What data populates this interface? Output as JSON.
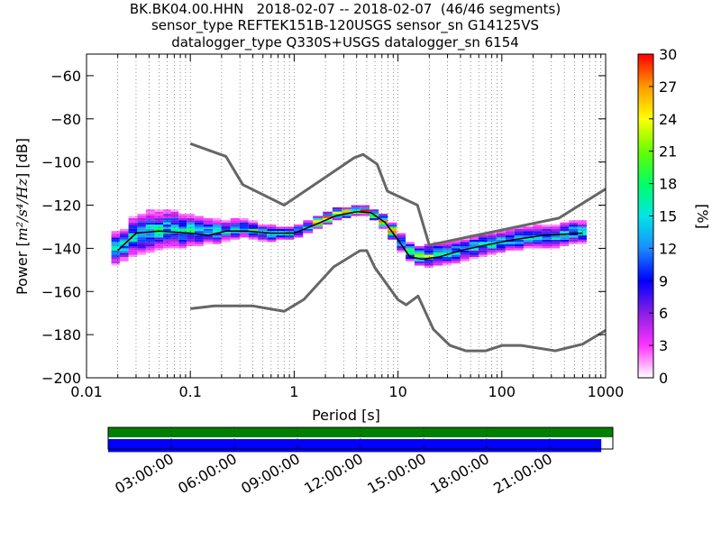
{
  "title_lines": [
    "BK.BK04.00.HHN   2018-02-07 -- 2018-02-07  (46/46 segments)",
    "sensor_type REFTEK151B-120USGS sensor_sn G14125VS",
    "datalogger_type Q330S+USGS datalogger_sn 6154"
  ],
  "chart_data": {
    "type": "heatmap",
    "title": "BK.BK04.00.HHN   2018-02-07 -- 2018-02-07  (46/46 segments)",
    "xlabel": "Period [s]",
    "ylabel_prefix": "Power [",
    "ylabel_units": "m²/s⁴/Hz",
    "ylabel_suffix": "] [dB]",
    "x_scale": "log",
    "xlim": [
      0.01,
      1000
    ],
    "ylim": [
      -200,
      -50
    ],
    "x_ticks": [
      0.01,
      0.1,
      1,
      10,
      100,
      1000
    ],
    "x_tick_labels": [
      "0.01",
      "0.1",
      "1",
      "10",
      "100",
      "1000"
    ],
    "y_ticks": [
      -200,
      -180,
      -160,
      -140,
      -120,
      -100,
      -80,
      -60
    ],
    "y_tick_labels": [
      "−200",
      "−180",
      "−160",
      "−140",
      "−120",
      "−100",
      "−80",
      "−60"
    ],
    "grid": "dotted vertical",
    "colorbar": {
      "label": "[%]",
      "range": [
        0,
        30
      ],
      "ticks": [
        0,
        3,
        6,
        9,
        12,
        15,
        18,
        21,
        24,
        27,
        30
      ],
      "colormap": [
        "#ffffff",
        "#ff33ff",
        "#8a1ee6",
        "#0000ff",
        "#1a8cff",
        "#00e6e6",
        "#00ff66",
        "#66ff00",
        "#ffff00",
        "#ff9900",
        "#ff0000"
      ]
    },
    "noise_models": [
      {
        "name": "NHNM",
        "color": "#666666",
        "points": [
          [
            0.1,
            -91.5
          ],
          [
            0.22,
            -97.4
          ],
          [
            0.32,
            -110.5
          ],
          [
            0.8,
            -120
          ],
          [
            3.8,
            -98
          ],
          [
            4.6,
            -96.5
          ],
          [
            6.3,
            -101
          ],
          [
            7.9,
            -113.5
          ],
          [
            15.4,
            -120
          ],
          [
            20,
            -138.5
          ],
          [
            354.8,
            -126
          ],
          [
            1000,
            -112.5
          ]
        ]
      },
      {
        "name": "NLNM",
        "color": "#666666",
        "points": [
          [
            0.1,
            -168
          ],
          [
            0.17,
            -166.7
          ],
          [
            0.4,
            -166.7
          ],
          [
            0.8,
            -169.2
          ],
          [
            1.24,
            -163.7
          ],
          [
            2.4,
            -148.6
          ],
          [
            4.3,
            -141.1
          ],
          [
            5,
            -141.1
          ],
          [
            6,
            -149
          ],
          [
            10,
            -163.8
          ],
          [
            12,
            -166.2
          ],
          [
            15.6,
            -162.1
          ],
          [
            21.9,
            -177.5
          ],
          [
            31.6,
            -185
          ],
          [
            45,
            -187.5
          ],
          [
            70,
            -187.5
          ],
          [
            101,
            -185
          ],
          [
            154,
            -185
          ],
          [
            328,
            -187.5
          ],
          [
            600,
            -184.4
          ],
          [
            1000,
            -178
          ]
        ]
      }
    ],
    "median": {
      "color": "#000000",
      "points": [
        [
          0.02,
          -141
        ],
        [
          0.03,
          -133
        ],
        [
          0.05,
          -132
        ],
        [
          0.1,
          -133
        ],
        [
          0.15,
          -134
        ],
        [
          0.22,
          -132
        ],
        [
          0.35,
          -132
        ],
        [
          0.6,
          -133
        ],
        [
          1.0,
          -133
        ],
        [
          1.6,
          -129
        ],
        [
          2.5,
          -125
        ],
        [
          4.0,
          -123
        ],
        [
          5.5,
          -123.5
        ],
        [
          7.5,
          -128
        ],
        [
          10,
          -136
        ],
        [
          13,
          -144
        ],
        [
          17,
          -145
        ],
        [
          25,
          -144
        ],
        [
          40,
          -141
        ],
        [
          70,
          -138.5
        ],
        [
          130,
          -136
        ],
        [
          250,
          -134
        ],
        [
          600,
          -133
        ]
      ]
    },
    "psd_density": {
      "description_bins": "period center [s], low dB, high dB",
      "columns": [
        [
          0.019,
          -148,
          -132
        ],
        [
          0.023,
          -146,
          -131
        ],
        [
          0.028,
          -144,
          -125
        ],
        [
          0.034,
          -143,
          -124
        ],
        [
          0.041,
          -142,
          -122
        ],
        [
          0.05,
          -141,
          -122
        ],
        [
          0.06,
          -140,
          -122
        ],
        [
          0.07,
          -140,
          -122
        ],
        [
          0.085,
          -140,
          -124
        ],
        [
          0.1,
          -139,
          -124
        ],
        [
          0.12,
          -139,
          -125
        ],
        [
          0.15,
          -138,
          -126
        ],
        [
          0.18,
          -138,
          -126
        ],
        [
          0.22,
          -137,
          -127
        ],
        [
          0.27,
          -136,
          -126
        ],
        [
          0.33,
          -135,
          -126
        ],
        [
          0.4,
          -136,
          -127
        ],
        [
          0.5,
          -137,
          -129
        ],
        [
          0.6,
          -137,
          -129
        ],
        [
          0.75,
          -136,
          -130
        ],
        [
          0.9,
          -136,
          -130
        ],
        [
          1.1,
          -135,
          -129
        ],
        [
          1.35,
          -133,
          -127
        ],
        [
          1.7,
          -131,
          -125
        ],
        [
          2.1,
          -129,
          -123
        ],
        [
          2.6,
          -127,
          -121
        ],
        [
          3.2,
          -126,
          -121
        ],
        [
          3.9,
          -125,
          -120
        ],
        [
          4.8,
          -125,
          -120
        ],
        [
          5.9,
          -127,
          -122
        ],
        [
          7.2,
          -131,
          -124
        ],
        [
          8.8,
          -136,
          -128
        ],
        [
          10.8,
          -142,
          -133
        ],
        [
          13,
          -146,
          -137
        ],
        [
          16,
          -148,
          -139
        ],
        [
          20,
          -149,
          -138
        ],
        [
          24,
          -148,
          -137
        ],
        [
          30,
          -148,
          -137
        ],
        [
          36,
          -147,
          -136
        ],
        [
          44,
          -146,
          -135
        ],
        [
          54,
          -145,
          -134
        ],
        [
          66,
          -144,
          -133
        ],
        [
          80,
          -143,
          -133
        ],
        [
          98,
          -142,
          -132
        ],
        [
          120,
          -141,
          -131
        ],
        [
          146,
          -141,
          -130
        ],
        [
          180,
          -140,
          -130
        ],
        [
          220,
          -140,
          -129
        ],
        [
          270,
          -140,
          -129
        ],
        [
          330,
          -140,
          -129
        ],
        [
          400,
          -139,
          -128
        ],
        [
          490,
          -138,
          -127
        ],
        [
          600,
          -138,
          -127
        ]
      ]
    },
    "data_availability": {
      "time_tick_labels": [
        "03:00:00",
        "06:00:00",
        "09:00:00",
        "12:00:00",
        "15:00:00",
        "18:00:00",
        "21:00:00"
      ],
      "time_tick_hours": [
        3,
        6,
        9,
        12,
        15,
        18,
        21
      ],
      "total_hours": 24,
      "bars": [
        {
          "color": "#008000",
          "start_hour": 0,
          "end_hour": 24
        },
        {
          "color": "#0000ff",
          "start_hour": 0,
          "end_hour": 23.45
        }
      ]
    }
  }
}
